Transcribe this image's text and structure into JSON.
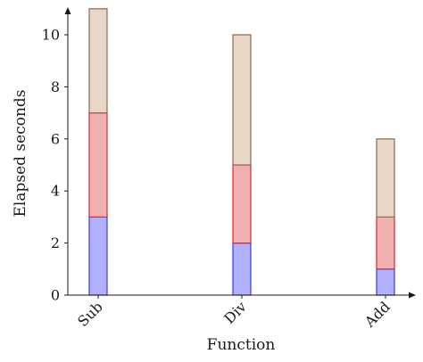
{
  "chart_data": {
    "type": "bar",
    "stacked": true,
    "xlabel": "Function",
    "ylabel": "Elapsed seconds",
    "categories": [
      "Sub",
      "Div",
      "Add"
    ],
    "ylim": [
      0,
      11
    ],
    "y_ticks": [
      0,
      2,
      4,
      6,
      8,
      10
    ],
    "grid": false,
    "legend": "none",
    "series": [
      {
        "values": [
          3,
          2,
          1
        ],
        "fill": "#b0b0ff",
        "stroke": "#3b3bdd"
      },
      {
        "values": [
          4,
          3,
          2
        ],
        "fill": "#f0b0b2",
        "stroke": "#d82a2a"
      },
      {
        "values": [
          4,
          5,
          3
        ],
        "fill": "#e8d6c6",
        "stroke": "#8b6a4f"
      }
    ],
    "axis_color": "#1a1a1a"
  }
}
